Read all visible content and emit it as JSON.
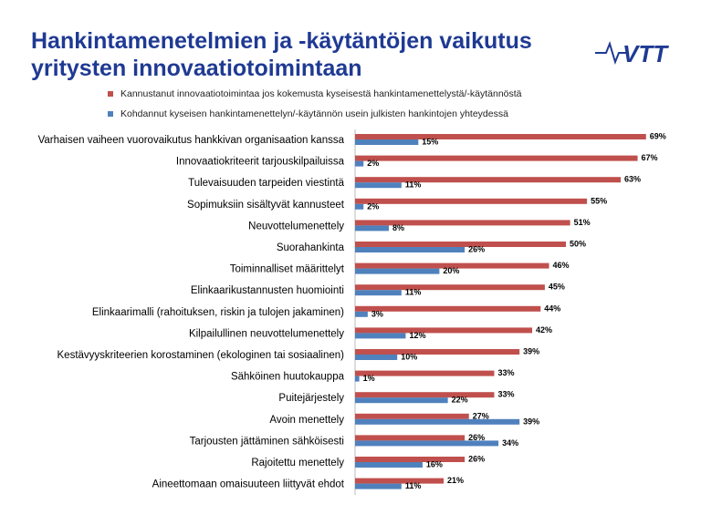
{
  "title_lines": [
    "Hankintamenetelmien ja -käytäntöjen vaikutus",
    "yritysten innovaatiotoimintaan"
  ],
  "logo_text": "VTT",
  "colors": {
    "title": "#1f3a93",
    "series1": "#c0504d",
    "series2": "#4f81bd",
    "logo": "#1f3a93"
  },
  "chart_data": {
    "type": "bar",
    "orientation": "horizontal",
    "legend_position": "top",
    "grid": false,
    "xlim": [
      0,
      100
    ],
    "categories": [
      "Varhaisen vaiheen vuorovaikutus hankkivan organisaation kanssa",
      "Innovaatiokriteerit tarjouskilpailuissa",
      "Tulevaisuuden tarpeiden viestintä",
      "Sopimuksiin sisältyvät kannusteet",
      "Neuvottelumenettely",
      "Suorahankinta",
      "Toiminnalliset määrittelyt",
      "Elinkaarikustannusten huomiointi",
      "Elinkaarimalli (rahoituksen, riskin ja tulojen jakaminen)",
      "Kilpailullinen neuvottelumenettely",
      "Kestävyyskriteerien korostaminen (ekologinen tai sosiaalinen)",
      "Sähköinen huutokauppa",
      "Puitejärjestely",
      "Avoin menettely",
      "Tarjousten jättäminen sähköisesti",
      "Rajoitettu menettely",
      "Aineettomaan omaisuuteen liittyvät ehdot"
    ],
    "series": [
      {
        "name": "Kannustanut innovaatiotoimintaa jos kokemusta kyseisestä hankintamenettelystä/-käytännöstä",
        "color": "#c0504d",
        "values": [
          69,
          67,
          63,
          55,
          51,
          50,
          46,
          45,
          44,
          42,
          39,
          33,
          33,
          27,
          26,
          26,
          21
        ],
        "labels": [
          "69%",
          "67%",
          "63%",
          "55%",
          "51%",
          "50%",
          "46%",
          "45%",
          "44%",
          "42%",
          "39%",
          "33%",
          "33%",
          "27%",
          "26%",
          "26%",
          "21%"
        ]
      },
      {
        "name": "Kohdannut kyseisen hankintamenettelyn/-käytännön usein julkisten hankintojen yhteydessä",
        "color": "#4f81bd",
        "values": [
          15,
          2,
          11,
          2,
          8,
          26,
          20,
          11,
          3,
          12,
          10,
          1,
          22,
          39,
          34,
          16,
          11
        ],
        "labels": [
          "15%",
          "2%",
          "11%",
          "2%",
          "8%",
          "26%",
          "20%",
          "11%",
          "3%",
          "12%",
          "10%",
          "1%",
          "22%",
          "39%",
          "34%",
          "16%",
          "11%"
        ]
      }
    ]
  }
}
